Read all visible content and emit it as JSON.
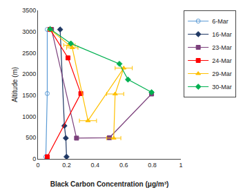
{
  "chart_data": {
    "type": "line",
    "xlabel": "Black Carbon Concentration (μg/m³)",
    "ylabel": "Altitude (m)",
    "xlim": [
      0,
      1.0
    ],
    "ylim": [
      0,
      3500
    ],
    "xticks": [
      0,
      0.2,
      0.4,
      0.6,
      0.8,
      1
    ],
    "yticks": [
      0,
      500,
      1000,
      1500,
      2000,
      2500,
      3000,
      3500
    ],
    "grid": false,
    "legend": "upper right",
    "series": [
      {
        "name": "6-Mar",
        "color": "#5B9BD5",
        "marker": "circle-open",
        "line_style": "solid",
        "x": [
          0.065,
          0.065,
          0.055
        ],
        "values": [
          3050,
          1540,
          50
        ]
      },
      {
        "name": "16-Mar",
        "color": "#1F3864",
        "marker": "diamond",
        "line_style": "solid",
        "x": [
          0.155,
          0.185,
          0.195,
          0.2
        ],
        "values": [
          3050,
          780,
          490,
          50
        ]
      },
      {
        "name": "23-Mar",
        "color": "#7B3F7B",
        "marker": "square",
        "line_style": "solid",
        "x": [
          0.095,
          0.27,
          0.5,
          0.795
        ],
        "values": [
          3050,
          490,
          500,
          1530
        ]
      },
      {
        "name": "24-Mar",
        "color": "#FF0000",
        "marker": "square",
        "line_style": "solid",
        "x": [
          0.085,
          0.21,
          0.3,
          0.065
        ],
        "values": [
          3050,
          2380,
          1540,
          50
        ]
      },
      {
        "name": "29-Mar",
        "color": "#FFC000",
        "marker": "triangle-up",
        "line_style": "solid",
        "x": [
          0.085,
          0.22,
          0.24,
          0.35,
          0.6,
          0.54,
          0.53
        ],
        "values": [
          3050,
          2680,
          2620,
          900,
          2140,
          1530,
          490
        ],
        "xerr": [
          null,
          0.04,
          0.04,
          0.06,
          0.06,
          0.06,
          0.05
        ]
      },
      {
        "name": "30-Mar",
        "color": "#00B050",
        "marker": "diamond",
        "line_style": "solid",
        "x": [
          0.085,
          0.23,
          0.57,
          0.63,
          0.795
        ],
        "values": [
          3060,
          2720,
          2240,
          1870,
          1570
        ]
      }
    ]
  }
}
